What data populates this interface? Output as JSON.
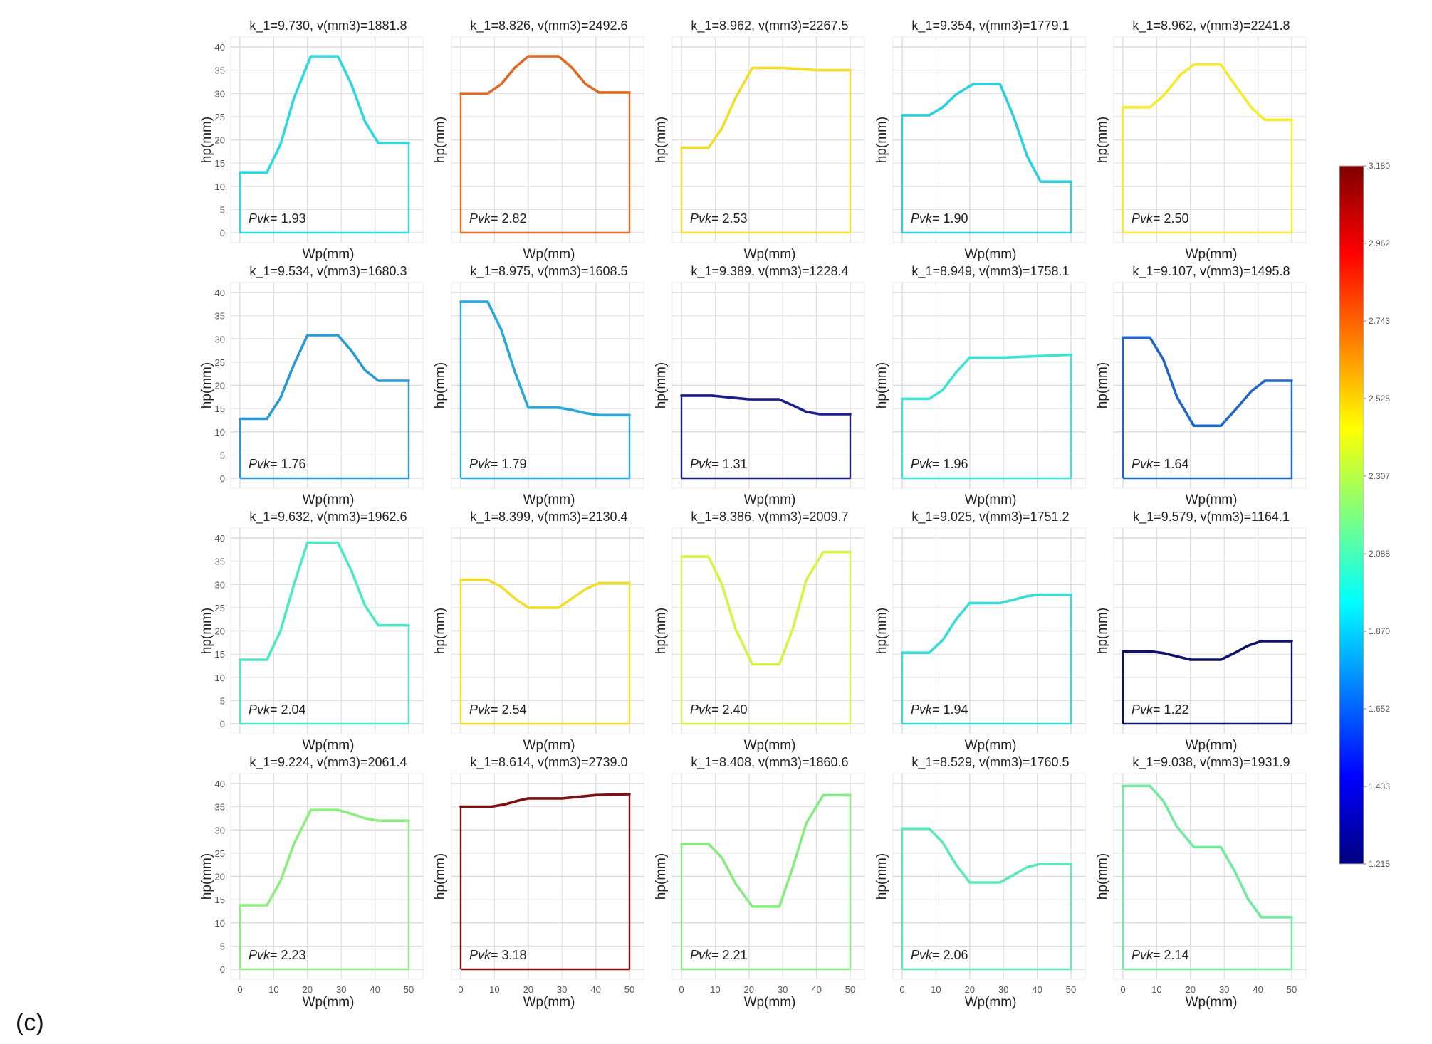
{
  "figure_label": "(c)",
  "chart_data": {
    "type": "line",
    "layout": "grid 4x5 small multiples with shared colorbar",
    "xlabel": "Wp(mm)",
    "ylabel": "hp(mm)",
    "xlim": [
      0,
      50
    ],
    "ylim": [
      0,
      40
    ],
    "xticks": [
      0,
      10,
      20,
      30,
      40,
      50
    ],
    "yticks": [
      0,
      5,
      10,
      15,
      20,
      25,
      30,
      35,
      40
    ],
    "grid": true,
    "annotation_prefix": "Pvk",
    "colorbar": {
      "colormap": "jet",
      "range": [
        1.215,
        3.18
      ],
      "ticks": [
        "3.180",
        "2.962",
        "2.743",
        "2.525",
        "2.307",
        "2.088",
        "1.870",
        "1.652",
        "1.433",
        "1.215"
      ],
      "stops": [
        "#00007f",
        "#0000ff",
        "#007fff",
        "#00ffff",
        "#7fff7f",
        "#ffff00",
        "#ff7f00",
        "#ff0000",
        "#7f0000"
      ]
    },
    "panels": [
      {
        "title": "k_1=9.730, v(mm3)=1881.8",
        "pvk": "1.93",
        "color": "#2ed8df",
        "x": [
          0,
          8,
          12,
          16,
          21,
          29,
          33,
          37,
          41,
          50
        ],
        "y": [
          13,
          13,
          19,
          29,
          38,
          38,
          32,
          24,
          19.3,
          19.3
        ]
      },
      {
        "title": "k_1=8.826, v(mm3)=2492.6",
        "pvk": "2.82",
        "color": "#e06a25",
        "x": [
          0,
          8,
          12,
          16,
          20,
          29,
          33,
          37,
          41,
          50
        ],
        "y": [
          30,
          30,
          32,
          35.5,
          38,
          38,
          35.5,
          32,
          30.2,
          30.2
        ]
      },
      {
        "title": "k_1=8.962, v(mm3)=2267.5",
        "pvk": "2.53",
        "color": "#f0de28",
        "x": [
          0,
          8,
          12,
          16,
          21,
          30,
          40,
          50
        ],
        "y": [
          18.3,
          18.3,
          22.5,
          29,
          35.5,
          35.5,
          35,
          35
        ]
      },
      {
        "title": "k_1=9.354, v(mm3)=1779.1",
        "pvk": "1.90",
        "color": "#2ed0e0",
        "x": [
          0,
          8,
          12,
          16,
          21,
          29,
          33,
          37,
          41,
          50
        ],
        "y": [
          25.3,
          25.3,
          27,
          29.8,
          32,
          32,
          25,
          16.5,
          11,
          11
        ]
      },
      {
        "title": "k_1=8.962, v(mm3)=2241.8",
        "pvk": "2.50",
        "color": "#f5ea30",
        "x": [
          0,
          8,
          12,
          17,
          21,
          29,
          33,
          38,
          42,
          50
        ],
        "y": [
          27,
          27,
          29.5,
          34,
          36.2,
          36.2,
          32,
          27,
          24.3,
          24.3
        ]
      },
      {
        "title": "k_1=9.534, v(mm3)=1680.3",
        "pvk": "1.76",
        "color": "#2a9ad6",
        "x": [
          0,
          8,
          12,
          16,
          20,
          29,
          33,
          37,
          41,
          50
        ],
        "y": [
          12.8,
          12.8,
          17.3,
          24.5,
          30.8,
          30.8,
          27.5,
          23.3,
          21,
          21
        ]
      },
      {
        "title": "k_1=8.975, v(mm3)=1608.5",
        "pvk": "1.79",
        "color": "#2aa8dc",
        "x": [
          0,
          8,
          12,
          16,
          20,
          29,
          33,
          37,
          41,
          50
        ],
        "y": [
          38,
          38,
          32,
          23,
          15.2,
          15.2,
          14.7,
          14,
          13.6,
          13.6
        ]
      },
      {
        "title": "k_1=9.389, v(mm3)=1228.4",
        "pvk": "1.31",
        "color": "#1c1f88",
        "x": [
          0,
          9,
          20,
          29,
          33,
          37,
          41,
          50
        ],
        "y": [
          17.8,
          17.8,
          17,
          17,
          15.7,
          14.3,
          13.8,
          13.8
        ]
      },
      {
        "title": "k_1=8.949, v(mm3)=1758.1",
        "pvk": "1.96",
        "color": "#3fe3d6",
        "x": [
          0,
          8,
          12,
          16,
          20,
          30,
          40,
          50
        ],
        "y": [
          17.1,
          17.1,
          19,
          22.8,
          26,
          26,
          26.3,
          26.6
        ]
      },
      {
        "title": "k_1=9.107, v(mm3)=1495.8",
        "pvk": "1.64",
        "color": "#2166c6",
        "x": [
          0,
          8,
          12,
          16,
          21,
          29,
          33,
          38,
          42,
          50
        ],
        "y": [
          30.3,
          30.3,
          25.5,
          17.5,
          11.3,
          11.3,
          14.5,
          18.7,
          21,
          21
        ]
      },
      {
        "title": "k_1=9.632, v(mm3)=1962.6",
        "pvk": "2.04",
        "color": "#4ee8c4",
        "x": [
          0,
          8,
          12,
          16,
          20,
          29,
          33,
          37,
          41,
          50
        ],
        "y": [
          13.8,
          13.8,
          20,
          30,
          39,
          39,
          33,
          25.5,
          21.2,
          21.2
        ]
      },
      {
        "title": "k_1=8.399, v(mm3)=2130.4",
        "pvk": "2.54",
        "color": "#f2dc2c",
        "x": [
          0,
          8,
          12,
          16,
          20,
          29,
          33,
          37,
          41,
          50
        ],
        "y": [
          31,
          31,
          29.5,
          27,
          25,
          25,
          27,
          29,
          30.3,
          30.3
        ]
      },
      {
        "title": "k_1=8.386, v(mm3)=2009.7",
        "pvk": "2.40",
        "color": "#d9f246",
        "x": [
          0,
          8,
          12,
          16,
          21,
          29,
          33,
          37,
          42,
          50
        ],
        "y": [
          36,
          36,
          30,
          20.5,
          12.8,
          12.8,
          20.5,
          31,
          37,
          37
        ]
      },
      {
        "title": "k_1=9.025, v(mm3)=1751.2",
        "pvk": "1.94",
        "color": "#37dcd7",
        "x": [
          0,
          8,
          12,
          16,
          20,
          29,
          33,
          37,
          41,
          50
        ],
        "y": [
          15.3,
          15.3,
          18,
          22.5,
          26,
          26,
          26.7,
          27.5,
          27.8,
          27.8
        ]
      },
      {
        "title": "k_1=9.579, v(mm3)=1164.1",
        "pvk": "1.22",
        "color": "#0f1268",
        "x": [
          0,
          8,
          12,
          16,
          20,
          29,
          33,
          37,
          41,
          50
        ],
        "y": [
          15.6,
          15.6,
          15.2,
          14.5,
          13.8,
          13.8,
          15.2,
          16.8,
          17.8,
          17.8
        ]
      },
      {
        "title": "k_1=9.224, v(mm3)=2061.4",
        "pvk": "2.23",
        "color": "#8cee7e",
        "x": [
          0,
          8,
          12,
          16,
          21,
          29,
          33,
          37,
          41,
          50
        ],
        "y": [
          13.8,
          13.8,
          19,
          27,
          34.3,
          34.3,
          33.5,
          32.5,
          32,
          32
        ]
      },
      {
        "title": "k_1=8.614, v(mm3)=2739.0",
        "pvk": "3.18",
        "color": "#7a1212",
        "x": [
          0,
          9,
          13,
          17,
          20,
          30,
          40,
          50
        ],
        "y": [
          35,
          35,
          35.5,
          36.3,
          36.8,
          36.8,
          37.5,
          37.7
        ]
      },
      {
        "title": "k_1=8.408, v(mm3)=1860.6",
        "pvk": "2.21",
        "color": "#86ec82",
        "x": [
          0,
          8,
          12,
          16,
          21,
          29,
          33,
          37,
          42,
          50
        ],
        "y": [
          27,
          27,
          24,
          18.5,
          13.5,
          13.5,
          22,
          31.5,
          37.5,
          37.5
        ]
      },
      {
        "title": "k_1=8.529, v(mm3)=1760.5",
        "pvk": "2.06",
        "color": "#5ee8b6",
        "x": [
          0,
          8,
          12,
          16,
          20,
          29,
          33,
          37,
          41,
          50
        ],
        "y": [
          30.3,
          30.3,
          27.3,
          22.5,
          18.7,
          18.7,
          20.3,
          22,
          22.7,
          22.7
        ]
      },
      {
        "title": "k_1=9.038, v(mm3)=1931.9",
        "pvk": "2.14",
        "color": "#74eaa0",
        "x": [
          0,
          8,
          12,
          16,
          21,
          29,
          33,
          37,
          41,
          50
        ],
        "y": [
          39.5,
          39.5,
          36.2,
          30.7,
          26.3,
          26.3,
          21.3,
          15.2,
          11.2,
          11.2
        ]
      }
    ]
  }
}
